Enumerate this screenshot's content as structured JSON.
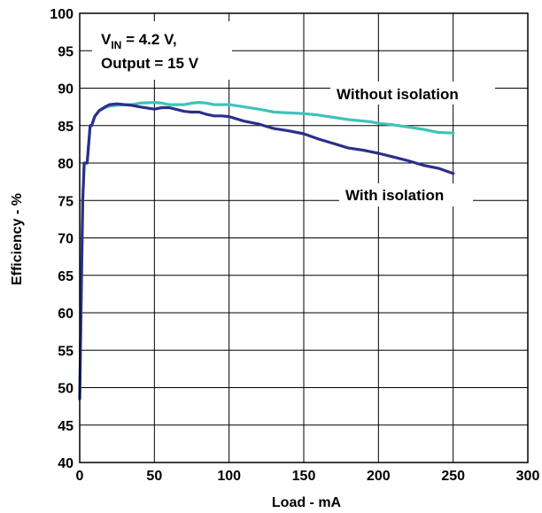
{
  "chart_data": {
    "type": "line",
    "xlabel": "Load - mA",
    "ylabel": "Efficiency - %",
    "xlim": [
      0,
      300
    ],
    "ylim": [
      40,
      100
    ],
    "x_ticks": [
      "0",
      "50",
      "100",
      "150",
      "200",
      "250",
      "300"
    ],
    "y_ticks": [
      "40",
      "45",
      "50",
      "55",
      "60",
      "65",
      "70",
      "75",
      "80",
      "85",
      "90",
      "95",
      "100"
    ],
    "grid": true,
    "annotation": {
      "vin_symbol": "V",
      "vin_subscript": "IN",
      "vin_value": " = 4.2 V,",
      "output_line": "Output = 15 V"
    },
    "series": [
      {
        "name": "Without isolation",
        "color": "#3fc3b8",
        "x": [
          0,
          1,
          2,
          3,
          5,
          7,
          8,
          10,
          13,
          17,
          20,
          25,
          30,
          35,
          40,
          50,
          55,
          60,
          70,
          75,
          80,
          85,
          90,
          95,
          100,
          110,
          120,
          130,
          140,
          150,
          160,
          170,
          180,
          190,
          195,
          200,
          210,
          220,
          230,
          240,
          250
        ],
        "values": [
          48.5,
          62,
          75,
          80,
          80,
          85,
          85,
          86.2,
          87,
          87.4,
          87.6,
          87.7,
          87.8,
          87.8,
          88,
          88.1,
          88,
          87.8,
          87.8,
          88,
          88.1,
          88,
          87.8,
          87.8,
          87.8,
          87.5,
          87.2,
          86.8,
          86.7,
          86.6,
          86.4,
          86.1,
          85.8,
          85.6,
          85.5,
          85.3,
          85.1,
          84.8,
          84.5,
          84.1,
          84
        ]
      },
      {
        "name": "With isolation",
        "color": "#2b2f8a",
        "x": [
          0,
          1,
          2,
          3,
          5,
          7,
          8,
          10,
          13,
          17,
          20,
          25,
          30,
          35,
          40,
          50,
          55,
          60,
          70,
          75,
          80,
          85,
          90,
          95,
          100,
          110,
          120,
          130,
          140,
          150,
          160,
          170,
          180,
          190,
          195,
          200,
          210,
          220,
          230,
          240,
          250
        ],
        "values": [
          48.5,
          62,
          75,
          80,
          80,
          85,
          85,
          86.2,
          87,
          87.5,
          87.8,
          87.9,
          87.8,
          87.7,
          87.5,
          87.2,
          87.4,
          87.4,
          86.9,
          86.8,
          86.8,
          86.5,
          86.3,
          86.3,
          86.2,
          85.6,
          85.2,
          84.6,
          84.3,
          83.9,
          83.2,
          82.6,
          82,
          81.7,
          81.5,
          81.3,
          80.8,
          80.3,
          79.7,
          79.3,
          78.6
        ]
      }
    ]
  }
}
